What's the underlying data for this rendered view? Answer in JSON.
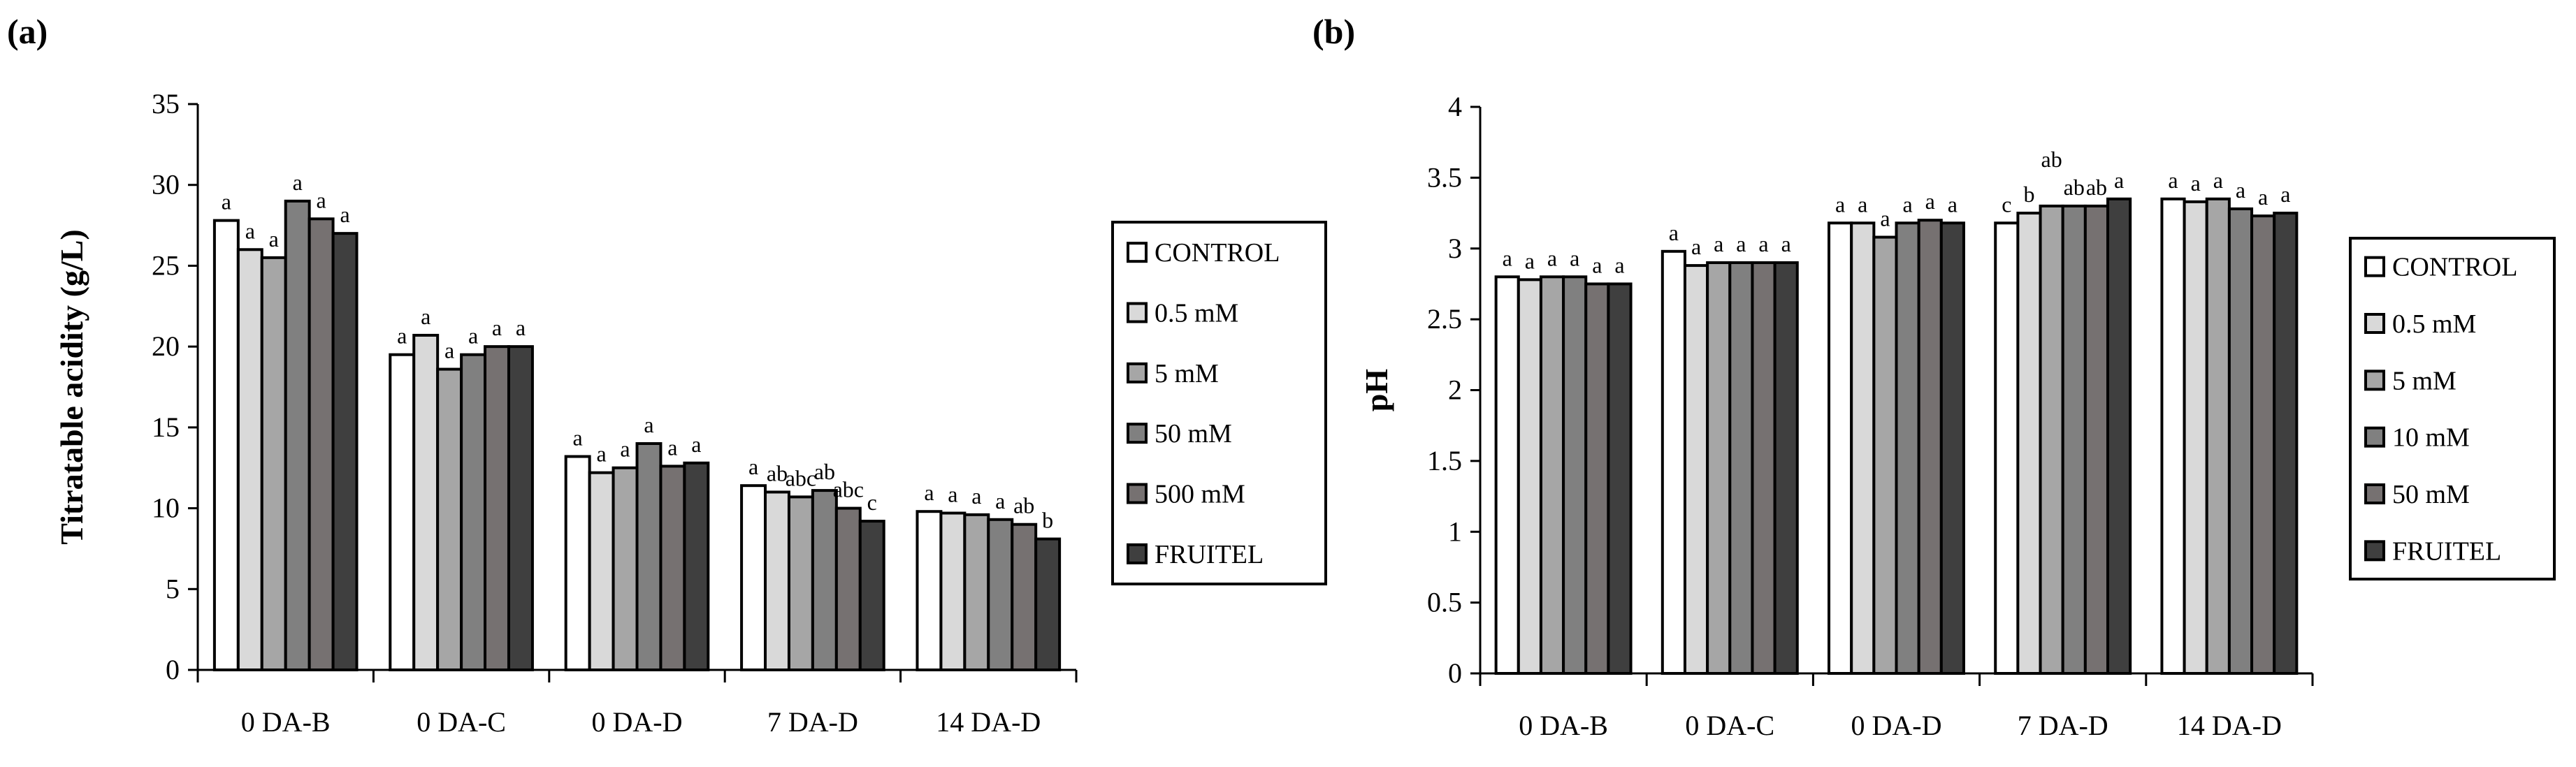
{
  "chart_data": [
    {
      "panel_label": "(a)",
      "type": "bar",
      "title": "",
      "xlabel": "",
      "ylabel": "Titratable acidity (g/L)",
      "ylim": [
        0,
        35
      ],
      "yticks": [
        0,
        5,
        10,
        15,
        20,
        25,
        30,
        35
      ],
      "categories": [
        "0 DA-B",
        "0 DA-C",
        "0 DA-D",
        "7 DA-D",
        "14 DA-D"
      ],
      "legend_position": "right",
      "grid": false,
      "series": [
        {
          "name": "CONTROL",
          "color": "#ffffff",
          "values": [
            27.8,
            19.5,
            13.2,
            11.4,
            9.8
          ],
          "letters": [
            "a",
            "a",
            "a",
            "a",
            "a"
          ]
        },
        {
          "name": "0.5 mM",
          "color": "#d9d9d9",
          "values": [
            26.0,
            20.7,
            12.2,
            11.0,
            9.7
          ],
          "letters": [
            "a",
            "a",
            "a",
            "ab",
            "a"
          ]
        },
        {
          "name": "5 mM",
          "color": "#a6a6a6",
          "values": [
            25.5,
            18.6,
            12.5,
            10.7,
            9.6
          ],
          "letters": [
            "a",
            "a",
            "a",
            "abc",
            "a"
          ]
        },
        {
          "name": "50 mM",
          "color": "#808080",
          "values": [
            29.0,
            19.5,
            14.0,
            11.1,
            9.3
          ],
          "letters": [
            "a",
            "a",
            "a",
            "ab",
            "a"
          ]
        },
        {
          "name": "500 mM",
          "color": "#767171",
          "values": [
            27.9,
            20.0,
            12.6,
            10.0,
            9.0
          ],
          "letters": [
            "a",
            "a",
            "a",
            "abc",
            "ab"
          ]
        },
        {
          "name": "FRUITEL",
          "color": "#3f3f3f",
          "values": [
            27.0,
            20.0,
            12.8,
            9.2,
            8.1
          ],
          "letters": [
            "a",
            "a",
            "a",
            "c",
            "b"
          ]
        }
      ]
    },
    {
      "panel_label": "(b)",
      "type": "bar",
      "title": "",
      "xlabel": "",
      "ylabel": "pH",
      "ylim": [
        0,
        4
      ],
      "yticks": [
        0,
        0.5,
        1,
        1.5,
        2,
        2.5,
        3,
        3.5,
        4
      ],
      "categories": [
        "0 DA-B",
        "0 DA-C",
        "0 DA-D",
        "7 DA-D",
        "14 DA-D"
      ],
      "legend_position": "right",
      "grid": false,
      "series": [
        {
          "name": "CONTROL",
          "color": "#ffffff",
          "values": [
            2.8,
            2.98,
            3.18,
            3.18,
            3.35
          ],
          "letters": [
            "a",
            "a",
            "a",
            "c",
            "a"
          ]
        },
        {
          "name": "0.5 mM",
          "color": "#d9d9d9",
          "values": [
            2.78,
            2.88,
            3.18,
            3.25,
            3.33
          ],
          "letters": [
            "a",
            "a",
            "a",
            "b",
            "a"
          ]
        },
        {
          "name": "5 mM",
          "color": "#a6a6a6",
          "values": [
            2.8,
            2.9,
            3.08,
            3.3,
            3.35
          ],
          "letters": [
            "a",
            "a",
            "a",
            "ab",
            "a"
          ]
        },
        {
          "name": "10 mM",
          "color": "#808080",
          "values": [
            2.8,
            2.9,
            3.18,
            3.3,
            3.28
          ],
          "letters": [
            "a",
            "a",
            "a",
            "ab",
            "a"
          ]
        },
        {
          "name": "50 mM",
          "color": "#767171",
          "values": [
            2.75,
            2.9,
            3.2,
            3.3,
            3.23
          ],
          "letters": [
            "a",
            "a",
            "a",
            "ab",
            "a"
          ]
        },
        {
          "name": "FRUITEL",
          "color": "#3f3f3f",
          "values": [
            2.75,
            2.9,
            3.18,
            3.35,
            3.25
          ],
          "letters": [
            "a",
            "a",
            "a",
            "a",
            "a"
          ]
        }
      ]
    }
  ]
}
